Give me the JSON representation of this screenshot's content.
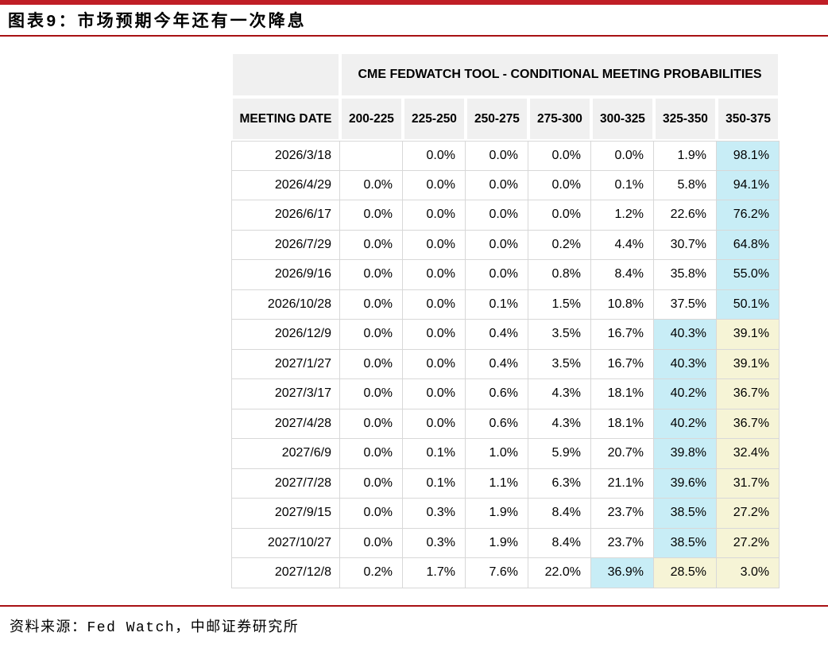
{
  "figure": {
    "title": "图表9：市场预期今年还有一次降息",
    "source": "资料来源：Fed Watch，中邮证券研究所"
  },
  "colors": {
    "accent_bar_red": "#c01e26",
    "accent_line_red": "#a81114",
    "header_bg": "#f0f0f0",
    "grid_line": "#d8d8d8",
    "highlight_cyan": "#c8edf6",
    "highlight_yellow": "#f6f4d6"
  },
  "chart_data": {
    "type": "table",
    "title": "CME FEDWATCH TOOL - CONDITIONAL MEETING PROBABILITIES",
    "row_header": "MEETING DATE",
    "columns": [
      "200-225",
      "225-250",
      "250-275",
      "275-300",
      "300-325",
      "325-350",
      "350-375"
    ],
    "rows": [
      {
        "date": "2026/3/18",
        "values": [
          "",
          "0.0%",
          "0.0%",
          "0.0%",
          "0.0%",
          "1.9%",
          "98.1%"
        ],
        "highlight": [
          null,
          null,
          null,
          null,
          null,
          null,
          "cyan"
        ]
      },
      {
        "date": "2026/4/29",
        "values": [
          "0.0%",
          "0.0%",
          "0.0%",
          "0.0%",
          "0.1%",
          "5.8%",
          "94.1%"
        ],
        "highlight": [
          null,
          null,
          null,
          null,
          null,
          null,
          "cyan"
        ]
      },
      {
        "date": "2026/6/17",
        "values": [
          "0.0%",
          "0.0%",
          "0.0%",
          "0.0%",
          "1.2%",
          "22.6%",
          "76.2%"
        ],
        "highlight": [
          null,
          null,
          null,
          null,
          null,
          null,
          "cyan"
        ]
      },
      {
        "date": "2026/7/29",
        "values": [
          "0.0%",
          "0.0%",
          "0.0%",
          "0.2%",
          "4.4%",
          "30.7%",
          "64.8%"
        ],
        "highlight": [
          null,
          null,
          null,
          null,
          null,
          null,
          "cyan"
        ]
      },
      {
        "date": "2026/9/16",
        "values": [
          "0.0%",
          "0.0%",
          "0.0%",
          "0.8%",
          "8.4%",
          "35.8%",
          "55.0%"
        ],
        "highlight": [
          null,
          null,
          null,
          null,
          null,
          null,
          "cyan"
        ]
      },
      {
        "date": "2026/10/28",
        "values": [
          "0.0%",
          "0.0%",
          "0.1%",
          "1.5%",
          "10.8%",
          "37.5%",
          "50.1%"
        ],
        "highlight": [
          null,
          null,
          null,
          null,
          null,
          null,
          "cyan"
        ]
      },
      {
        "date": "2026/12/9",
        "values": [
          "0.0%",
          "0.0%",
          "0.4%",
          "3.5%",
          "16.7%",
          "40.3%",
          "39.1%"
        ],
        "highlight": [
          null,
          null,
          null,
          null,
          null,
          "cyan",
          "yellow"
        ]
      },
      {
        "date": "2027/1/27",
        "values": [
          "0.0%",
          "0.0%",
          "0.4%",
          "3.5%",
          "16.7%",
          "40.3%",
          "39.1%"
        ],
        "highlight": [
          null,
          null,
          null,
          null,
          null,
          "cyan",
          "yellow"
        ]
      },
      {
        "date": "2027/3/17",
        "values": [
          "0.0%",
          "0.0%",
          "0.6%",
          "4.3%",
          "18.1%",
          "40.2%",
          "36.7%"
        ],
        "highlight": [
          null,
          null,
          null,
          null,
          null,
          "cyan",
          "yellow"
        ]
      },
      {
        "date": "2027/4/28",
        "values": [
          "0.0%",
          "0.0%",
          "0.6%",
          "4.3%",
          "18.1%",
          "40.2%",
          "36.7%"
        ],
        "highlight": [
          null,
          null,
          null,
          null,
          null,
          "cyan",
          "yellow"
        ]
      },
      {
        "date": "2027/6/9",
        "values": [
          "0.0%",
          "0.1%",
          "1.0%",
          "5.9%",
          "20.7%",
          "39.8%",
          "32.4%"
        ],
        "highlight": [
          null,
          null,
          null,
          null,
          null,
          "cyan",
          "yellow"
        ]
      },
      {
        "date": "2027/7/28",
        "values": [
          "0.0%",
          "0.1%",
          "1.1%",
          "6.3%",
          "21.1%",
          "39.6%",
          "31.7%"
        ],
        "highlight": [
          null,
          null,
          null,
          null,
          null,
          "cyan",
          "yellow"
        ]
      },
      {
        "date": "2027/9/15",
        "values": [
          "0.0%",
          "0.3%",
          "1.9%",
          "8.4%",
          "23.7%",
          "38.5%",
          "27.2%"
        ],
        "highlight": [
          null,
          null,
          null,
          null,
          null,
          "cyan",
          "yellow"
        ]
      },
      {
        "date": "2027/10/27",
        "values": [
          "0.0%",
          "0.3%",
          "1.9%",
          "8.4%",
          "23.7%",
          "38.5%",
          "27.2%"
        ],
        "highlight": [
          null,
          null,
          null,
          null,
          null,
          "cyan",
          "yellow"
        ]
      },
      {
        "date": "2027/12/8",
        "values": [
          "0.2%",
          "1.7%",
          "7.6%",
          "22.0%",
          "36.9%",
          "28.5%",
          "3.0%"
        ],
        "highlight": [
          null,
          null,
          null,
          null,
          "cyan",
          "yellow",
          "yellow"
        ]
      }
    ]
  }
}
